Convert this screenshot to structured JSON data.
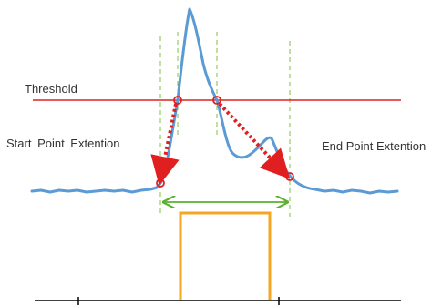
{
  "labels": {
    "threshold": "Threshold",
    "start_extension": "Start Point Extention",
    "end_extension": "End Point Extention"
  },
  "colors": {
    "signal": "#5b9bd5",
    "threshold": "#e02020",
    "arrow": "#e02020",
    "guides": "#7fc241",
    "span": "#5bb031",
    "pulse": "#f5a623",
    "axis": "#000000"
  }
}
